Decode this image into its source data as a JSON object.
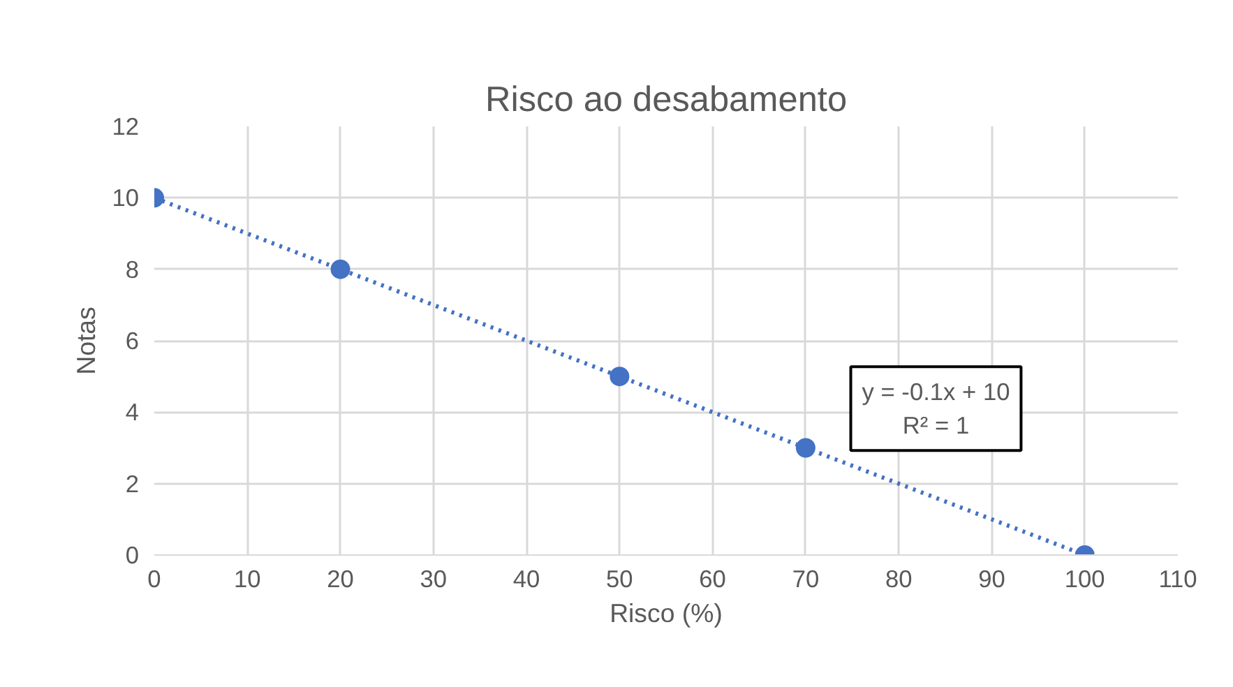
{
  "chart_data": {
    "type": "scatter",
    "title": "Risco ao desabamento",
    "xlabel": "Risco (%)",
    "ylabel": "Notas",
    "xlim": [
      0,
      110
    ],
    "xticks": [
      0,
      10,
      20,
      30,
      40,
      50,
      60,
      70,
      80,
      90,
      100,
      110
    ],
    "ylim": [
      0,
      12
    ],
    "yticks": [
      0,
      2,
      4,
      6,
      8,
      10,
      12
    ],
    "grid": true,
    "series": [
      {
        "color": "#4472c4",
        "marker": "circle",
        "x": [
          0,
          20,
          50,
          70,
          100
        ],
        "values": [
          10,
          8,
          5,
          3,
          0
        ]
      },
      {
        "type": "line",
        "color": "#4472c4",
        "marker": "none",
        "line_style": "dotted",
        "x": [
          0,
          100
        ],
        "values": [
          10,
          0
        ]
      }
    ],
    "annotations": [
      "y = -0.1x + 10",
      "R² = 1"
    ]
  }
}
